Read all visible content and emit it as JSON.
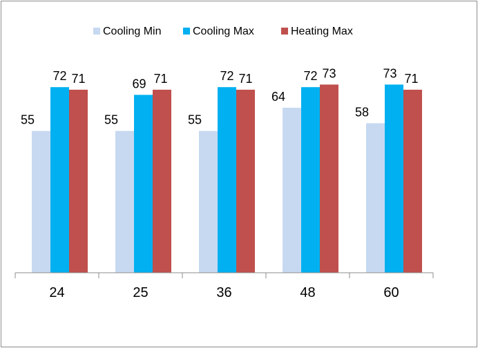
{
  "chart_data": {
    "type": "bar",
    "categories": [
      "24",
      "25",
      "36",
      "48",
      "60"
    ],
    "series": [
      {
        "name": "Cooling Min",
        "values": [
          55,
          55,
          55,
          64,
          58
        ],
        "color": "#c6d9f1"
      },
      {
        "name": "Cooling Max",
        "values": [
          72,
          69,
          72,
          72,
          73
        ],
        "color": "#00b0f0"
      },
      {
        "name": "Heating Max",
        "values": [
          71,
          71,
          71,
          73,
          71
        ],
        "color": "#c0504d"
      }
    ],
    "ylim": [
      0,
      90
    ],
    "grid": false,
    "legend_position": "top",
    "data_labels": true,
    "axis_color": "#8c8c8c"
  }
}
